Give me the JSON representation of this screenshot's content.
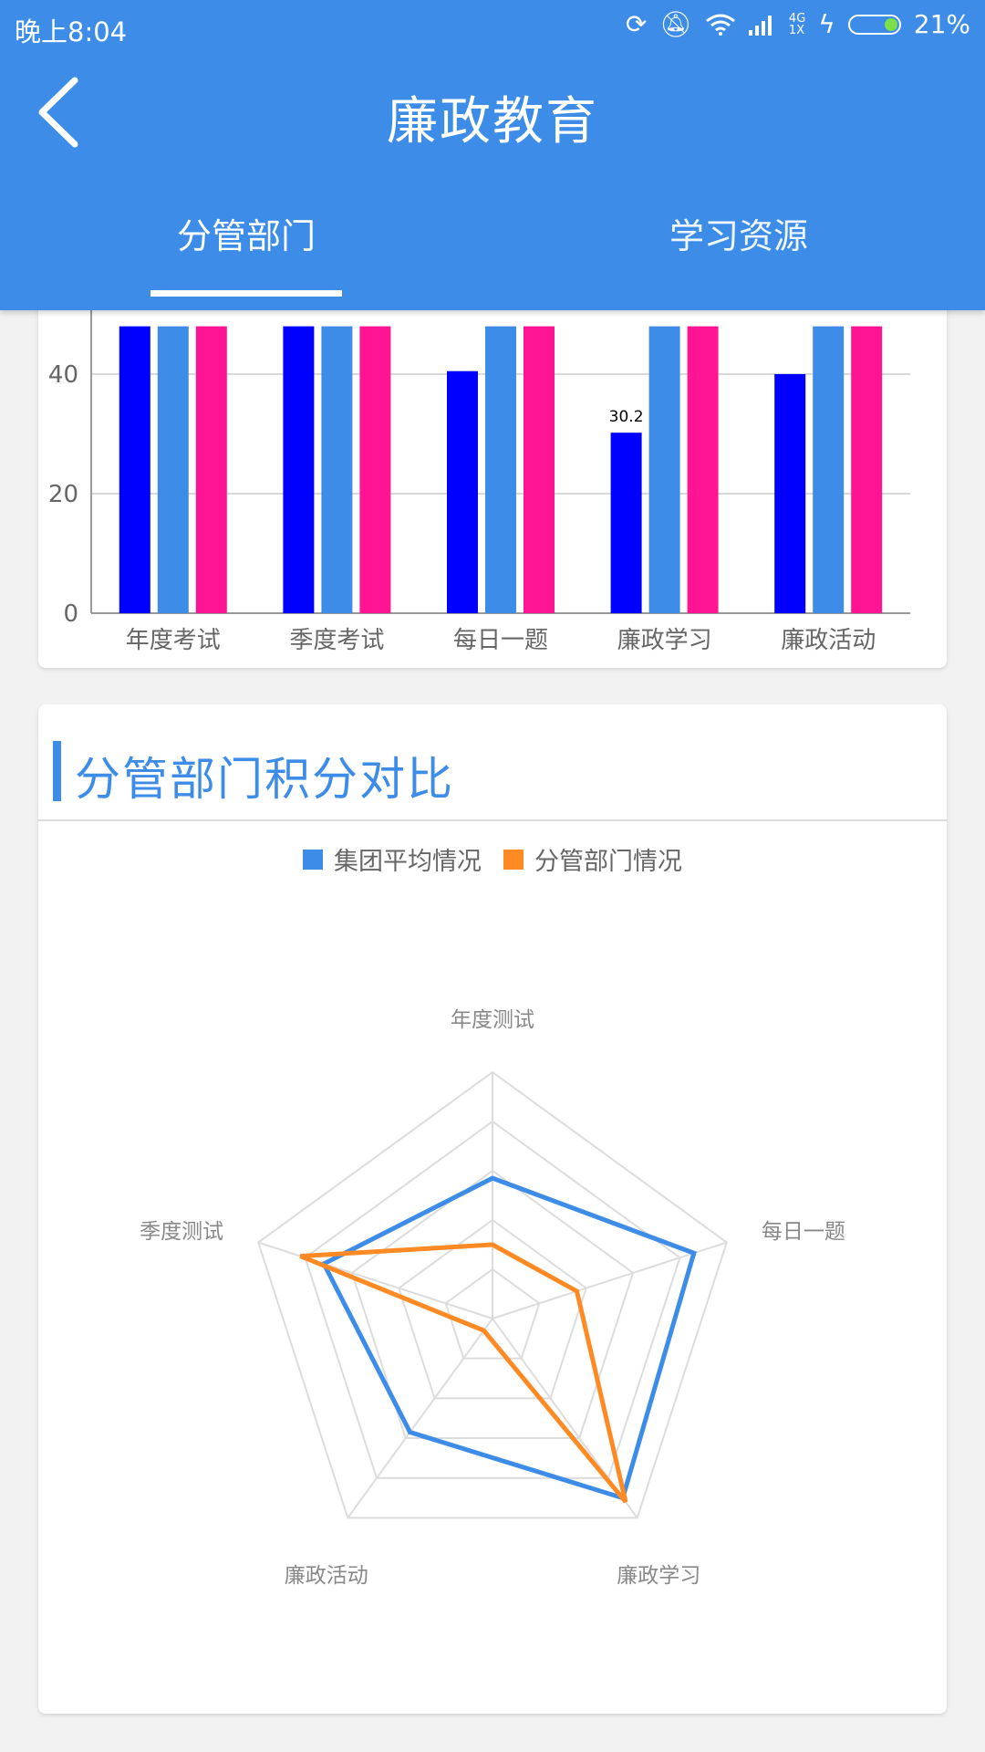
{
  "status_bar": {
    "time": "晚上8:04",
    "network": "4G\n1X",
    "battery": "21%",
    "battery_level": 0.21
  },
  "header": {
    "title": "廉政教育",
    "tabs": [
      {
        "label": "分管部门"
      },
      {
        "label": "学习资源"
      }
    ],
    "active_tab": 0
  },
  "colors": {
    "header": "#3d8de8",
    "series_blue": "#0000ff",
    "series_lightblue": "#3d8de8",
    "series_pink": "#ff1493",
    "radar_group": "#3d8de8",
    "radar_dept": "#ff8a24"
  },
  "bar_chart": {
    "chart_data": {
      "type": "bar",
      "categories": [
        "年度考试",
        "季度考试",
        "每日一题",
        "廉政学习",
        "廉政活动"
      ],
      "series": [
        {
          "values": [
            48,
            48,
            40.5,
            30.2,
            40
          ]
        },
        {
          "values": [
            48,
            48,
            48,
            48,
            48
          ]
        },
        {
          "values": [
            48,
            48,
            48,
            48,
            48
          ]
        }
      ],
      "yticks": [
        0,
        20,
        40
      ],
      "data_labels": [
        {
          "category_index": 3,
          "series_index": 0,
          "text": "30.2"
        }
      ],
      "ylim": [
        0,
        80
      ]
    }
  },
  "radar_section": {
    "title": "分管部门积分对比",
    "chart_data": {
      "type": "radar",
      "indicators": [
        "年度测试",
        "每日一题",
        "廉政学习",
        "廉政活动",
        "季度测试"
      ],
      "series": [
        {
          "name": "集团平均情况",
          "values": [
            0.57,
            0.86,
            0.9,
            0.57,
            0.72
          ]
        },
        {
          "name": "分管部门情况",
          "values": [
            0.3,
            0.36,
            0.92,
            0.06,
            0.82
          ]
        }
      ],
      "rings": 5,
      "max": 1
    }
  }
}
